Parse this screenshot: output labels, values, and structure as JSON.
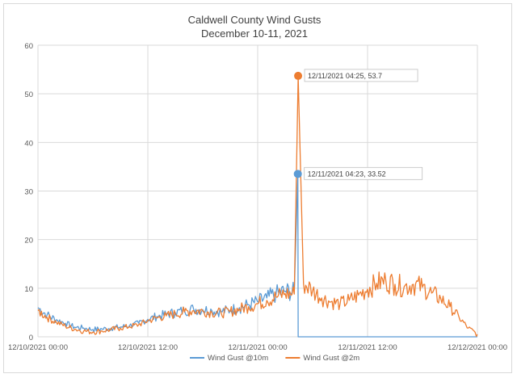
{
  "chart_data": {
    "type": "line",
    "title": "Caldwell County Wind Gusts",
    "subtitle": "December 10-11, 2021",
    "xlabel": "",
    "ylabel": "",
    "ylim": [
      0,
      60
    ],
    "y_ticks": [
      0,
      10,
      20,
      30,
      40,
      50,
      60
    ],
    "x_range": [
      "2021-12-10 00:00",
      "2021-12-12 00:00"
    ],
    "x_ticks": [
      "12/10/2021 00:00",
      "12/10/2021 12:00",
      "12/11/2021 00:00",
      "12/11/2021 12:00",
      "12/12/2021 00:00"
    ],
    "grid": true,
    "legend_position": "bottom",
    "series": [
      {
        "name": "Wind Gust @10m",
        "color": "#5b9bd5",
        "points": [
          [
            "2021-12-10 00:00",
            6.0
          ],
          [
            "2021-12-10 01:00",
            4.5
          ],
          [
            "2021-12-10 02:00",
            3.5
          ],
          [
            "2021-12-10 03:00",
            2.8
          ],
          [
            "2021-12-10 04:00",
            2.0
          ],
          [
            "2021-12-10 05:00",
            1.8
          ],
          [
            "2021-12-10 06:00",
            1.5
          ],
          [
            "2021-12-10 07:00",
            1.6
          ],
          [
            "2021-12-10 08:00",
            1.8
          ],
          [
            "2021-12-10 09:00",
            2.0
          ],
          [
            "2021-12-10 10:00",
            2.3
          ],
          [
            "2021-12-10 11:00",
            2.8
          ],
          [
            "2021-12-10 12:00",
            3.6
          ],
          [
            "2021-12-10 13:00",
            4.2
          ],
          [
            "2021-12-10 14:00",
            4.6
          ],
          [
            "2021-12-10 15:00",
            5.0
          ],
          [
            "2021-12-10 16:00",
            5.4
          ],
          [
            "2021-12-10 17:00",
            5.7
          ],
          [
            "2021-12-10 18:00",
            5.6
          ],
          [
            "2021-12-10 19:00",
            5.4
          ],
          [
            "2021-12-10 20:00",
            5.2
          ],
          [
            "2021-12-10 21:00",
            5.5
          ],
          [
            "2021-12-10 22:00",
            6.0
          ],
          [
            "2021-12-10 23:00",
            6.6
          ],
          [
            "2021-12-11 00:00",
            7.2
          ],
          [
            "2021-12-11 01:00",
            8.0
          ],
          [
            "2021-12-11 02:00",
            8.8
          ],
          [
            "2021-12-11 03:00",
            9.4
          ],
          [
            "2021-12-11 04:00",
            9.2
          ],
          [
            "2021-12-11 04:23",
            33.52
          ],
          [
            "2021-12-11 04:25",
            0.0
          ],
          [
            "2021-12-12 00:00",
            0.0
          ]
        ]
      },
      {
        "name": "Wind Gust @2m",
        "color": "#ed7d31",
        "points": [
          [
            "2021-12-10 00:00",
            5.4
          ],
          [
            "2021-12-10 01:00",
            4.0
          ],
          [
            "2021-12-10 02:00",
            3.0
          ],
          [
            "2021-12-10 03:00",
            2.2
          ],
          [
            "2021-12-10 04:00",
            1.6
          ],
          [
            "2021-12-10 05:00",
            1.2
          ],
          [
            "2021-12-10 06:00",
            1.0
          ],
          [
            "2021-12-10 07:00",
            1.2
          ],
          [
            "2021-12-10 08:00",
            1.5
          ],
          [
            "2021-12-10 09:00",
            1.8
          ],
          [
            "2021-12-10 10:00",
            2.1
          ],
          [
            "2021-12-10 11:00",
            2.5
          ],
          [
            "2021-12-10 12:00",
            3.3
          ],
          [
            "2021-12-10 13:00",
            3.9
          ],
          [
            "2021-12-10 14:00",
            4.3
          ],
          [
            "2021-12-10 15:00",
            4.7
          ],
          [
            "2021-12-10 16:00",
            5.1
          ],
          [
            "2021-12-10 17:00",
            5.4
          ],
          [
            "2021-12-10 18:00",
            5.3
          ],
          [
            "2021-12-10 19:00",
            5.0
          ],
          [
            "2021-12-10 20:00",
            4.9
          ],
          [
            "2021-12-10 21:00",
            5.2
          ],
          [
            "2021-12-10 22:00",
            5.7
          ],
          [
            "2021-12-10 23:00",
            6.2
          ],
          [
            "2021-12-11 00:00",
            6.8
          ],
          [
            "2021-12-11 01:00",
            7.5
          ],
          [
            "2021-12-11 02:00",
            8.2
          ],
          [
            "2021-12-11 03:00",
            8.9
          ],
          [
            "2021-12-11 04:00",
            8.8
          ],
          [
            "2021-12-11 04:25",
            53.7
          ],
          [
            "2021-12-11 05:00",
            11.0
          ],
          [
            "2021-12-11 06:00",
            9.5
          ],
          [
            "2021-12-11 07:00",
            8.0
          ],
          [
            "2021-12-11 08:00",
            7.2
          ],
          [
            "2021-12-11 09:00",
            6.8
          ],
          [
            "2021-12-11 10:00",
            7.5
          ],
          [
            "2021-12-11 11:00",
            8.6
          ],
          [
            "2021-12-11 12:00",
            9.8
          ],
          [
            "2021-12-11 13:00",
            11.0
          ],
          [
            "2021-12-11 14:00",
            11.5
          ],
          [
            "2021-12-11 15:00",
            10.8
          ],
          [
            "2021-12-11 16:00",
            10.3
          ],
          [
            "2021-12-11 17:00",
            10.8
          ],
          [
            "2021-12-11 18:00",
            10.2
          ],
          [
            "2021-12-11 19:00",
            9.0
          ],
          [
            "2021-12-11 20:00",
            7.8
          ],
          [
            "2021-12-11 21:00",
            6.2
          ],
          [
            "2021-12-11 22:00",
            4.0
          ],
          [
            "2021-12-11 23:00",
            1.8
          ],
          [
            "2021-12-12 00:00",
            0.5
          ]
        ]
      }
    ],
    "annotations": [
      {
        "series": "Wind Gust @2m",
        "x": "2021-12-11 04:25",
        "y": 53.7,
        "text": "12/11/2021 04:25, 53.7"
      },
      {
        "series": "Wind Gust @10m",
        "x": "2021-12-11 04:23",
        "y": 33.52,
        "text": "12/11/2021 04:23, 33.52"
      }
    ]
  }
}
